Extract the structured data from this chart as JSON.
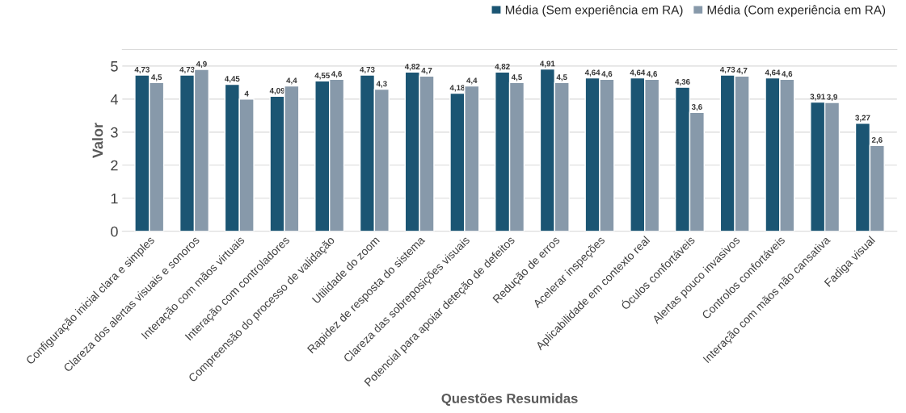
{
  "chart_data": {
    "type": "bar",
    "xlabel": "Questões Resumidas",
    "ylabel": "Valor",
    "categories": [
      "Configuração inicial clara e simples",
      "Clareza dos alertas visuais e sonoros",
      "Interação com mãos virtuais",
      "Interação com controladores",
      "Compreensão do processo de validação",
      "Utilidade do zoom",
      "Rapidez de resposta do sistema",
      "Clareza das sobreposições visuais",
      "Potencial para apoiar deteção de defeitos",
      "Redução de erros",
      "Acelerar inspeções",
      "Aplicabilidade em contexto real",
      "Óculos confortáveis",
      "Alertas pouco invasivos",
      "Controlos confortáveis",
      "Interação com mãos não cansativa",
      "Fadiga visual"
    ],
    "series": [
      {
        "name": "Média (Sem experiência em RA)",
        "color": "#1b5573",
        "values": [
          4.73,
          4.73,
          4.45,
          4.09,
          4.55,
          4.73,
          4.82,
          4.18,
          4.82,
          4.91,
          4.64,
          4.64,
          4.36,
          4.73,
          4.64,
          3.91,
          3.27
        ],
        "value_labels": [
          "4,73",
          "4,73",
          "4,45",
          "4,09",
          "4,55",
          "4,73",
          "4,82",
          "4,18",
          "4,82",
          "4,91",
          "4,64",
          "4,64",
          "4,36",
          "4,73",
          "4,64",
          "3,91",
          "3,27"
        ]
      },
      {
        "name": "Média (Com experiência em RA)",
        "color": "#8799aa",
        "values": [
          4.5,
          4.9,
          4,
          4.4,
          4.6,
          4.3,
          4.7,
          4.4,
          4.5,
          4.5,
          4.6,
          4.6,
          3.6,
          4.7,
          4.6,
          3.9,
          2.6
        ],
        "value_labels": [
          "4,5",
          "4,9",
          "4",
          "4,4",
          "4,6",
          "4,3",
          "4,7",
          "4,4",
          "4,5",
          "4,5",
          "4,6",
          "4,6",
          "3,6",
          "4,7",
          "4,6",
          "3,9",
          "2,6"
        ]
      }
    ],
    "ylim": [
      0,
      5.5
    ],
    "yticks": [
      0,
      1,
      2,
      3,
      4,
      5
    ],
    "grid": "y",
    "legend": "top right"
  }
}
